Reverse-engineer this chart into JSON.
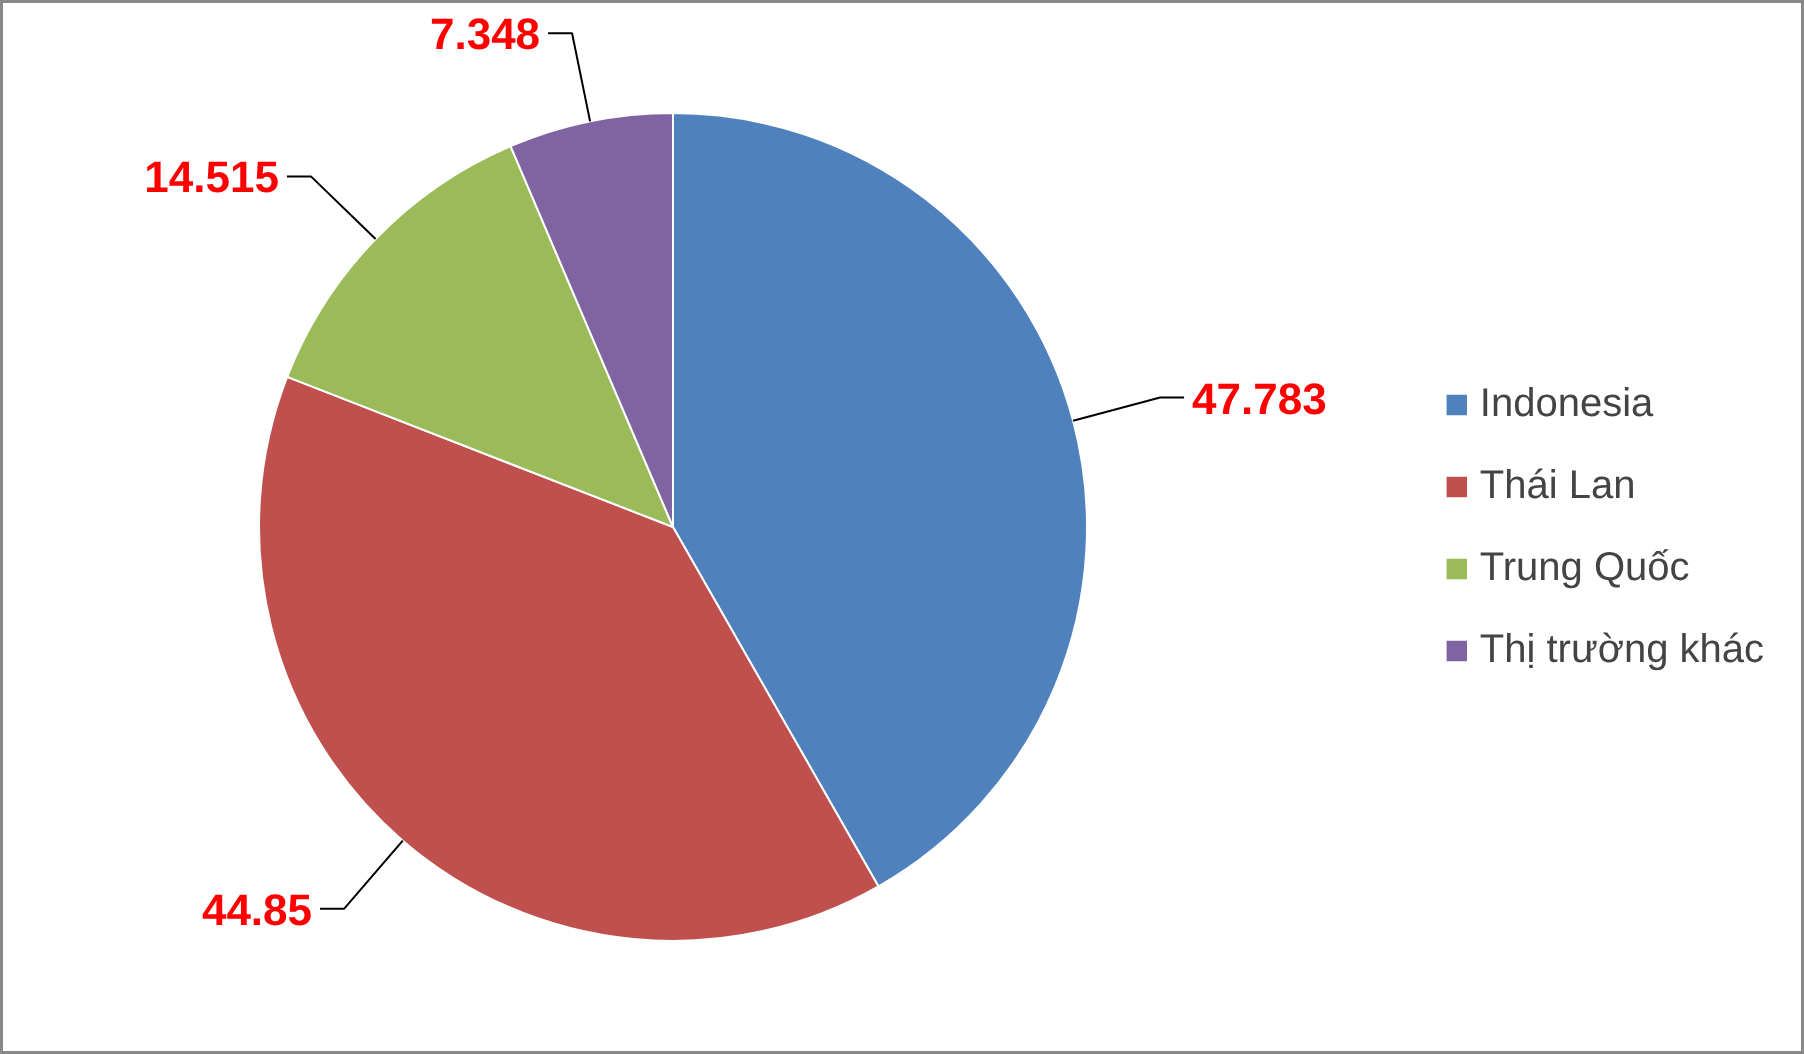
{
  "chart_data": {
    "type": "pie",
    "categories": [
      "Indonesia",
      "Thái Lan",
      "Trung Quốc",
      "Thị trường khác"
    ],
    "values": [
      47.783,
      44.85,
      14.515,
      7.348
    ],
    "colors": [
      "#4f81bd",
      "#c0504d",
      "#9bbb59",
      "#8064a2"
    ],
    "data_labels": true,
    "legend": "right"
  }
}
